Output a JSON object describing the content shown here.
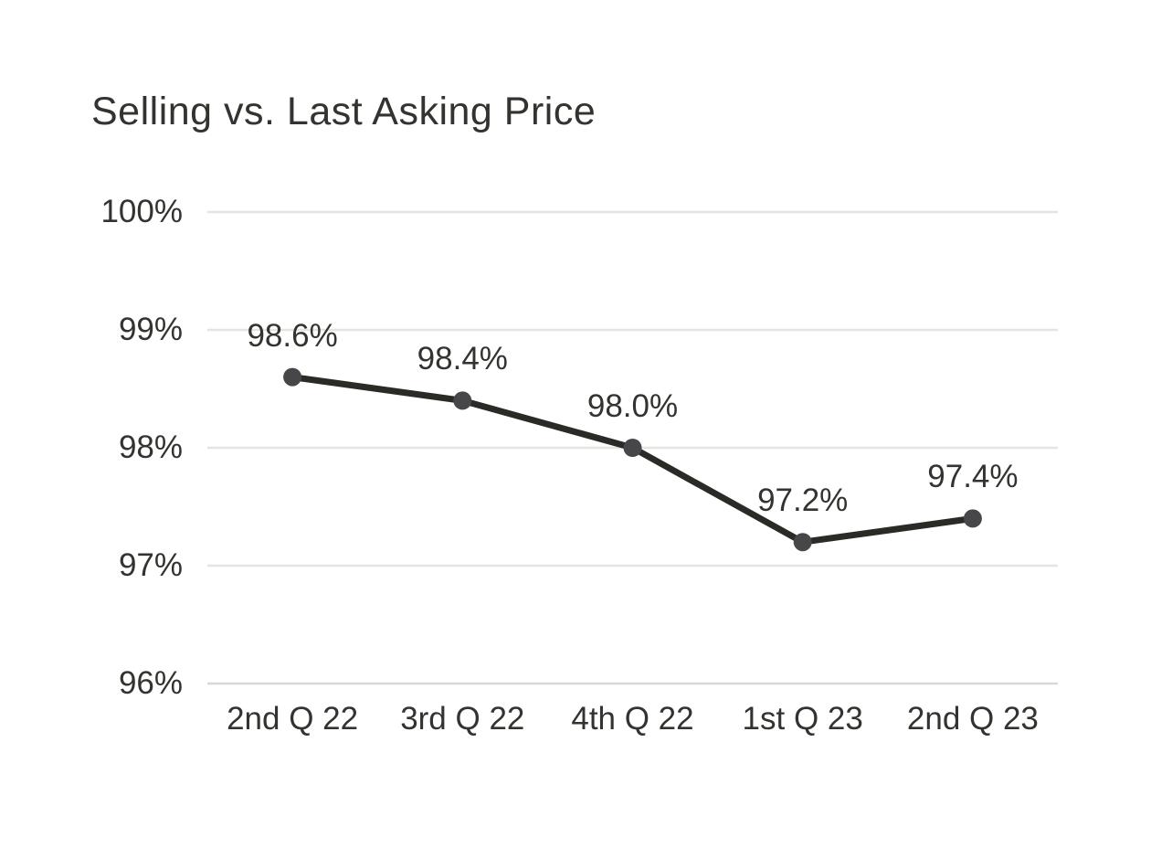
{
  "page": {
    "background_color": "#ffffff"
  },
  "chart_data": {
    "type": "line",
    "title": "Selling vs. Last Asking Price",
    "categories": [
      "2nd Q 22",
      "3rd Q 22",
      "4th Q 22",
      "1st Q 23",
      "2nd Q 23"
    ],
    "series": [
      {
        "name": "Selling vs. Last Asking Price",
        "values": [
          98.6,
          98.4,
          98.0,
          97.2,
          97.4
        ]
      }
    ],
    "data_labels": [
      "98.6%",
      "98.4%",
      "98.0%",
      "97.2%",
      "97.4%"
    ],
    "y_ticks": [
      100,
      99,
      98,
      97,
      96
    ],
    "y_tick_labels": [
      "100%",
      "99%",
      "98%",
      "97%",
      "96%"
    ],
    "ylim": [
      96,
      100
    ],
    "xlabel": "",
    "ylabel": "",
    "grid": "horizontal",
    "legend": "none",
    "marker_style": "filled-circle",
    "colors": {
      "line": "#2a2a27",
      "marker": "#47474a",
      "gridline": "#e6e4df",
      "baseline": "#d9d7d2",
      "text": "#33332f",
      "background": "#ffffff"
    }
  }
}
